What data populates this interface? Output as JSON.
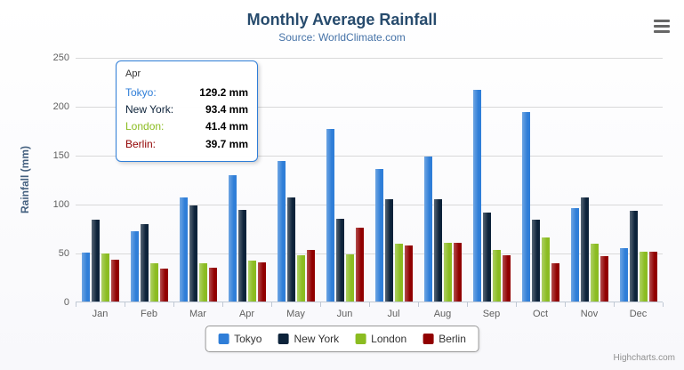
{
  "chart_data": {
    "type": "bar",
    "title": "Monthly Average Rainfall",
    "subtitle": "Source: WorldClimate.com",
    "xlabel": "",
    "ylabel": "Rainfall (mm)",
    "ylim": [
      0,
      250
    ],
    "y_ticks": [
      0,
      50,
      100,
      150,
      200,
      250
    ],
    "grid": true,
    "legend_position": "bottom",
    "categories": [
      "Jan",
      "Feb",
      "Mar",
      "Apr",
      "May",
      "Jun",
      "Jul",
      "Aug",
      "Sep",
      "Oct",
      "Nov",
      "Dec"
    ],
    "series": [
      {
        "name": "Tokyo",
        "color": "#2f7ed8",
        "values": [
          49.9,
          71.5,
          106.4,
          129.2,
          144.0,
          176.0,
          135.6,
          148.5,
          216.4,
          194.1,
          95.6,
          54.4
        ]
      },
      {
        "name": "New York",
        "color": "#0d233a",
        "values": [
          83.6,
          78.8,
          98.5,
          93.4,
          106.0,
          84.5,
          105.0,
          104.3,
          91.2,
          83.5,
          106.6,
          92.3
        ]
      },
      {
        "name": "London",
        "color": "#8bbc21",
        "values": [
          48.9,
          38.8,
          39.3,
          41.4,
          47.0,
          48.3,
          59.0,
          59.6,
          52.4,
          65.2,
          59.3,
          51.2
        ]
      },
      {
        "name": "Berlin",
        "color": "#910000",
        "values": [
          42.4,
          33.2,
          34.5,
          39.7,
          52.6,
          75.5,
          57.4,
          60.4,
          47.6,
          39.1,
          46.8,
          51.1
        ]
      }
    ]
  },
  "tooltip": {
    "category": "Apr",
    "border_color": "#2f7ed8",
    "rows": [
      {
        "name": "Tokyo:",
        "value": "129.2 mm",
        "color": "#2f7ed8"
      },
      {
        "name": "New York:",
        "value": "93.4 mm",
        "color": "#0d233a"
      },
      {
        "name": "London:",
        "value": "41.4 mm",
        "color": "#8bbc21"
      },
      {
        "name": "Berlin:",
        "value": "39.7 mm",
        "color": "#910000"
      }
    ]
  },
  "icons": {
    "export_menu": "hamburger-icon"
  },
  "credits": {
    "label": "Highcharts.com"
  }
}
